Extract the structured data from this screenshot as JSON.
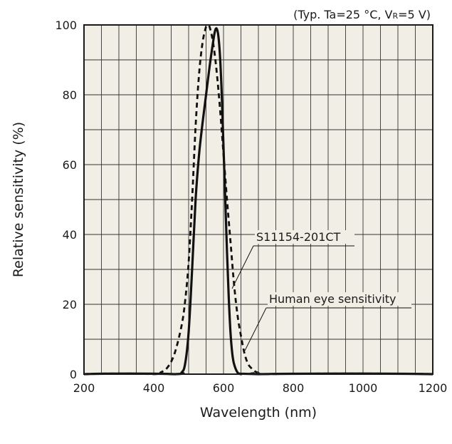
{
  "chart_data": {
    "type": "line",
    "title": "",
    "conditions": {
      "prefix": "(Typ. Ta=25 °C, V",
      "subscript": "R",
      "suffix": "=5 V)"
    },
    "xlabel": "Wavelength (nm)",
    "ylabel": "Relative sensitivity (%)",
    "xlim": [
      200,
      1200
    ],
    "ylim": [
      0,
      100
    ],
    "xticks": [
      200,
      400,
      600,
      800,
      1000,
      1200
    ],
    "yticks": [
      0,
      20,
      40,
      60,
      80,
      100
    ],
    "grid": true,
    "series": [
      {
        "name": "S11154-201CT",
        "style": "solid",
        "x": [
          200,
          460,
          480,
          490,
          500,
          510,
          520,
          530,
          540,
          550,
          560,
          570,
          575,
          580,
          585,
          590,
          595,
          600,
          605,
          610,
          615,
          620,
          625,
          630,
          640,
          650,
          700,
          1200
        ],
        "y": [
          0,
          0,
          0.5,
          3,
          12,
          30,
          50,
          63,
          72,
          80,
          88,
          95,
          98,
          99,
          97,
          91,
          80,
          65,
          50,
          35,
          22,
          12,
          6,
          3,
          0.5,
          0,
          0,
          0
        ]
      },
      {
        "name": "Human eye sensitivity",
        "style": "dashed",
        "x": [
          200,
          400,
          420,
          440,
          460,
          480,
          490,
          500,
          510,
          520,
          530,
          540,
          550,
          555,
          560,
          570,
          580,
          590,
          600,
          610,
          620,
          630,
          640,
          650,
          660,
          670,
          680,
          690,
          700,
          720,
          1200
        ],
        "y": [
          0,
          0,
          0.5,
          2,
          6,
          14,
          21,
          32,
          50,
          71,
          86,
          95,
          99.5,
          100,
          99.5,
          95,
          87,
          76,
          63,
          50,
          38,
          26,
          17,
          11,
          6,
          3,
          1.7,
          0.8,
          0.4,
          0,
          0
        ]
      }
    ],
    "annotations": [
      {
        "text": "S11154-201CT",
        "series": "S11154-201CT"
      },
      {
        "text": "Human eye sensitivity",
        "series": "Human eye sensitivity"
      }
    ]
  }
}
